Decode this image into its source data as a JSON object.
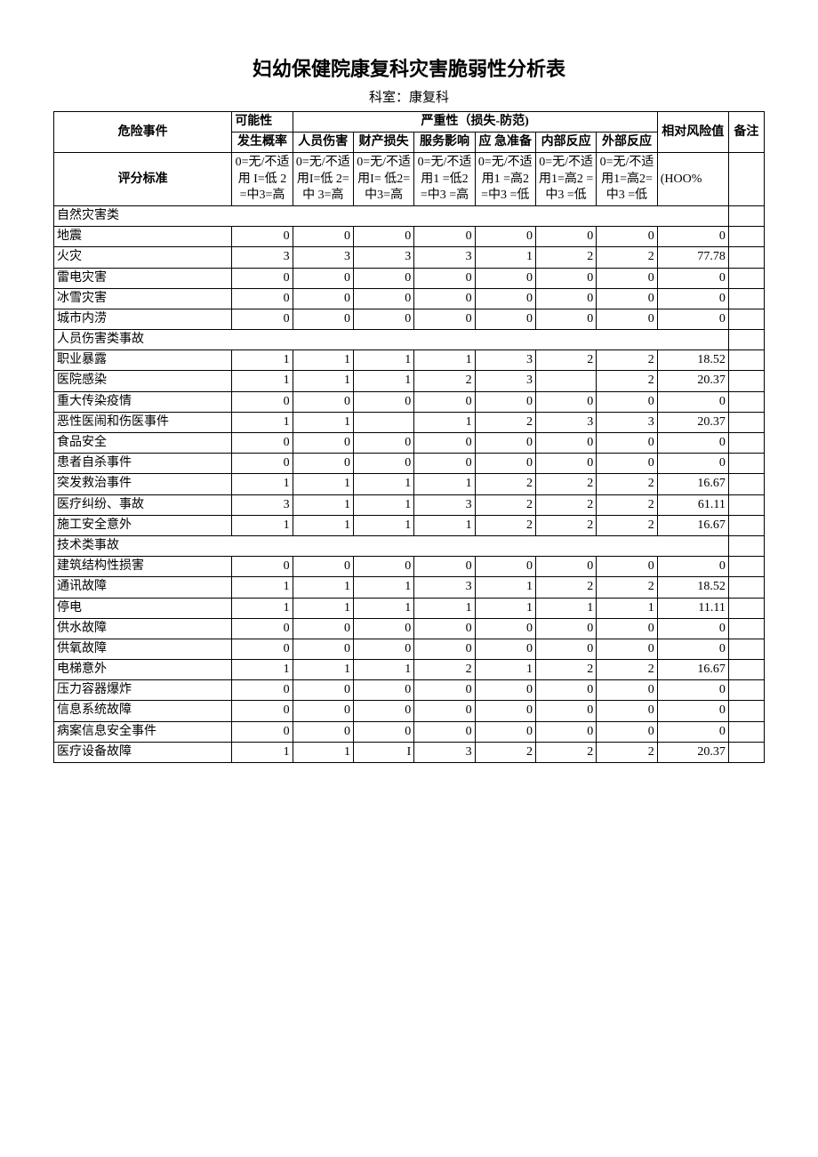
{
  "title": "妇幼保健院康复科灾害脆弱性分析表",
  "subtitle": "科室：康复科",
  "headers": {
    "event": "危险事件",
    "possibility": "可能性",
    "severity": "严重性（损失-防范)",
    "probability": "发生概率",
    "injury": "人员伤害",
    "property": "财产损失",
    "service": "服务影响",
    "prep": "应 急准备",
    "internal": "内部反应",
    "external": "外部反应",
    "risk": "相对风险值",
    "note": "备注",
    "scoring": "评分标准"
  },
  "scoring": {
    "probability": "0=无/不适用 I=低 2=中3=高",
    "injury": "0=无/不适用I=低 2=中 3=高",
    "property": "0=无/不适用I= 低2=中3=高",
    "service": "0=无/不适用1 =低2 =中3 =高",
    "prep": "0=无/不适用1 =高2 =中3 =低",
    "internal": "0=无/不适用1=高2 =中3 =低",
    "external": "0=无/不适用1=高2=中3 =低",
    "risk": "(HOO%"
  },
  "categories": [
    {
      "name": "自然灾害类",
      "rows": [
        {
          "label": "地震",
          "vals": [
            "0",
            "0",
            "0",
            "0",
            "0",
            "0",
            "0"
          ],
          "risk": "0"
        },
        {
          "label": "火灾",
          "vals": [
            "3",
            "3",
            "3",
            "3",
            "1",
            "2",
            "2"
          ],
          "risk": "77.78"
        },
        {
          "label": "雷电灾害",
          "vals": [
            "0",
            "0",
            "0",
            "0",
            "0",
            "0",
            "0"
          ],
          "risk": "0"
        },
        {
          "label": "冰雪灾害",
          "vals": [
            "0",
            "0",
            "0",
            "0",
            "0",
            "0",
            "0"
          ],
          "risk": "0"
        },
        {
          "label": "城市内涝",
          "vals": [
            "0",
            "0",
            "0",
            "0",
            "0",
            "0",
            "0"
          ],
          "risk": "0"
        }
      ]
    },
    {
      "name": "人员伤害类事故",
      "rows": [
        {
          "label": "职业暴露",
          "vals": [
            "1",
            "1",
            "1",
            "1",
            "3",
            "2",
            "2"
          ],
          "risk": "18.52"
        },
        {
          "label": "医院感染",
          "vals": [
            "1",
            "1",
            "1",
            "2",
            "3",
            "",
            "2"
          ],
          "risk": "20.37"
        },
        {
          "label": "重大传染疫情",
          "vals": [
            "0",
            "0",
            "0",
            "0",
            "0",
            "0",
            "0"
          ],
          "risk": "0"
        },
        {
          "label": "恶性医闹和伤医事件",
          "vals": [
            "1",
            "1",
            "",
            "1",
            "2",
            "3",
            "3"
          ],
          "risk": "20.37"
        },
        {
          "label": "食品安全",
          "vals": [
            "0",
            "0",
            "0",
            "0",
            "0",
            "0",
            "0"
          ],
          "risk": "0"
        },
        {
          "label": "患者自杀事件",
          "vals": [
            "0",
            "0",
            "0",
            "0",
            "0",
            "0",
            "0"
          ],
          "risk": "0"
        },
        {
          "label": "突发救治事件",
          "vals": [
            "1",
            "1",
            "1",
            "1",
            "2",
            "2",
            "2"
          ],
          "risk": "16.67"
        },
        {
          "label": "医疗纠纷、事故",
          "vals": [
            "3",
            "1",
            "1",
            "3",
            "2",
            "2",
            "2"
          ],
          "risk": "61.11"
        },
        {
          "label": "施工安全意外",
          "vals": [
            "1",
            "1",
            "1",
            "1",
            "2",
            "2",
            "2"
          ],
          "risk": "16.67"
        }
      ]
    },
    {
      "name": "技术类事故",
      "rows": [
        {
          "label": "建筑结构性损害",
          "vals": [
            "0",
            "0",
            "0",
            "0",
            "0",
            "0",
            "0"
          ],
          "risk": "0"
        },
        {
          "label": "通讯故障",
          "vals": [
            "1",
            "1",
            "1",
            "3",
            "1",
            "2",
            "2"
          ],
          "risk": "18.52"
        },
        {
          "label": "停电",
          "vals": [
            "1",
            "1",
            "1",
            "1",
            "1",
            "1",
            "1"
          ],
          "risk": "11.11"
        },
        {
          "label": "供水故障",
          "vals": [
            "0",
            "0",
            "0",
            "0",
            "0",
            "0",
            "0"
          ],
          "risk": "0"
        },
        {
          "label": "供氧故障",
          "vals": [
            "0",
            "0",
            "0",
            "0",
            "0",
            "0",
            "0"
          ],
          "risk": "0"
        },
        {
          "label": "电梯意外",
          "vals": [
            "1",
            "1",
            "1",
            "2",
            "1",
            "2",
            "2"
          ],
          "risk": "16.67"
        },
        {
          "label": "压力容器爆炸",
          "vals": [
            "0",
            "0",
            "0",
            "0",
            "0",
            "0",
            "0"
          ],
          "risk": "0"
        },
        {
          "label": "信息系统故障",
          "vals": [
            "0",
            "0",
            "0",
            "0",
            "0",
            "0",
            "0"
          ],
          "risk": "0"
        },
        {
          "label": "病案信息安全事件",
          "vals": [
            "0",
            "0",
            "0",
            "0",
            "0",
            "0",
            "0"
          ],
          "risk": "0"
        },
        {
          "label": "医疗设备故障",
          "vals": [
            "1",
            "1",
            "I",
            "3",
            "2",
            "2",
            "2"
          ],
          "risk": "20.37"
        }
      ]
    }
  ]
}
